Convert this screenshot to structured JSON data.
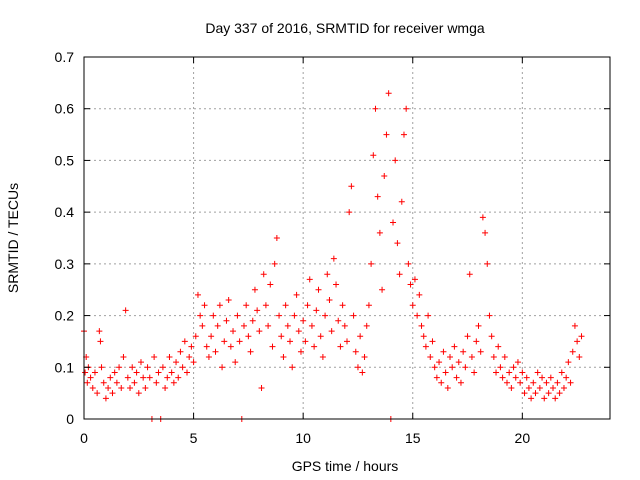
{
  "chart_data": {
    "type": "scatter",
    "title": "Day 337 of 2016, SRMTID for receiver wmga",
    "xlabel": "GPS time / hours",
    "ylabel": "SRMTID / TECUs",
    "xlim": [
      0,
      24
    ],
    "ylim": [
      0,
      0.7
    ],
    "xticks": [
      0,
      5,
      10,
      15,
      20
    ],
    "yticks": [
      0,
      0.1,
      0.2,
      0.3,
      0.4,
      0.5,
      0.6,
      0.7
    ],
    "grid": true,
    "legend": "none",
    "marker": "+",
    "series": [
      {
        "name": "SRMTID",
        "color": "#ff0000",
        "points": [
          [
            0.0,
            0.17
          ],
          [
            0.05,
            0.09
          ],
          [
            0.1,
            0.12
          ],
          [
            0.15,
            0.07
          ],
          [
            0.2,
            0.1
          ],
          [
            0.3,
            0.08
          ],
          [
            0.4,
            0.06
          ],
          [
            0.5,
            0.09
          ],
          [
            0.6,
            0.05
          ],
          [
            0.7,
            0.17
          ],
          [
            0.75,
            0.15
          ],
          [
            0.8,
            0.1
          ],
          [
            0.9,
            0.07
          ],
          [
            1.0,
            0.04
          ],
          [
            1.1,
            0.06
          ],
          [
            1.2,
            0.08
          ],
          [
            1.3,
            0.05
          ],
          [
            1.4,
            0.09
          ],
          [
            1.5,
            0.07
          ],
          [
            1.6,
            0.1
          ],
          [
            1.7,
            0.06
          ],
          [
            1.8,
            0.12
          ],
          [
            1.9,
            0.21
          ],
          [
            2.0,
            0.08
          ],
          [
            2.1,
            0.06
          ],
          [
            2.2,
            0.1
          ],
          [
            2.3,
            0.07
          ],
          [
            2.4,
            0.09
          ],
          [
            2.5,
            0.05
          ],
          [
            2.6,
            0.11
          ],
          [
            2.7,
            0.08
          ],
          [
            2.8,
            0.06
          ],
          [
            2.9,
            0.1
          ],
          [
            3.0,
            0.08
          ],
          [
            3.1,
            0.0
          ],
          [
            3.2,
            0.12
          ],
          [
            3.3,
            0.07
          ],
          [
            3.4,
            0.09
          ],
          [
            3.5,
            0.0
          ],
          [
            3.6,
            0.1
          ],
          [
            3.7,
            0.06
          ],
          [
            3.8,
            0.08
          ],
          [
            3.9,
            0.12
          ],
          [
            4.0,
            0.09
          ],
          [
            4.1,
            0.07
          ],
          [
            4.2,
            0.11
          ],
          [
            4.3,
            0.08
          ],
          [
            4.4,
            0.13
          ],
          [
            4.5,
            0.1
          ],
          [
            4.6,
            0.15
          ],
          [
            4.7,
            0.09
          ],
          [
            4.8,
            0.12
          ],
          [
            4.9,
            0.14
          ],
          [
            5.0,
            0.11
          ],
          [
            5.1,
            0.16
          ],
          [
            5.2,
            0.24
          ],
          [
            5.3,
            0.2
          ],
          [
            5.4,
            0.18
          ],
          [
            5.5,
            0.22
          ],
          [
            5.6,
            0.14
          ],
          [
            5.7,
            0.12
          ],
          [
            5.8,
            0.16
          ],
          [
            5.9,
            0.2
          ],
          [
            6.0,
            0.13
          ],
          [
            6.1,
            0.18
          ],
          [
            6.2,
            0.22
          ],
          [
            6.3,
            0.1
          ],
          [
            6.4,
            0.15
          ],
          [
            6.5,
            0.19
          ],
          [
            6.6,
            0.23
          ],
          [
            6.7,
            0.14
          ],
          [
            6.8,
            0.17
          ],
          [
            6.9,
            0.11
          ],
          [
            7.0,
            0.2
          ],
          [
            7.1,
            0.15
          ],
          [
            7.2,
            0.0
          ],
          [
            7.3,
            0.18
          ],
          [
            7.4,
            0.22
          ],
          [
            7.5,
            0.16
          ],
          [
            7.6,
            0.13
          ],
          [
            7.7,
            0.19
          ],
          [
            7.8,
            0.25
          ],
          [
            7.9,
            0.21
          ],
          [
            8.0,
            0.17
          ],
          [
            8.1,
            0.06
          ],
          [
            8.2,
            0.28
          ],
          [
            8.3,
            0.22
          ],
          [
            8.4,
            0.18
          ],
          [
            8.5,
            0.26
          ],
          [
            8.6,
            0.14
          ],
          [
            8.7,
            0.3
          ],
          [
            8.8,
            0.35
          ],
          [
            8.9,
            0.2
          ],
          [
            9.0,
            0.16
          ],
          [
            9.1,
            0.12
          ],
          [
            9.2,
            0.22
          ],
          [
            9.3,
            0.18
          ],
          [
            9.4,
            0.15
          ],
          [
            9.5,
            0.1
          ],
          [
            9.6,
            0.2
          ],
          [
            9.7,
            0.24
          ],
          [
            9.8,
            0.17
          ],
          [
            9.9,
            0.13
          ],
          [
            10.0,
            0.19
          ],
          [
            10.1,
            0.15
          ],
          [
            10.2,
            0.22
          ],
          [
            10.3,
            0.27
          ],
          [
            10.4,
            0.18
          ],
          [
            10.5,
            0.14
          ],
          [
            10.6,
            0.21
          ],
          [
            10.7,
            0.25
          ],
          [
            10.8,
            0.16
          ],
          [
            10.9,
            0.12
          ],
          [
            11.0,
            0.2
          ],
          [
            11.1,
            0.28
          ],
          [
            11.2,
            0.23
          ],
          [
            11.3,
            0.17
          ],
          [
            11.4,
            0.31
          ],
          [
            11.5,
            0.26
          ],
          [
            11.6,
            0.19
          ],
          [
            11.7,
            0.14
          ],
          [
            11.8,
            0.22
          ],
          [
            11.9,
            0.18
          ],
          [
            12.0,
            0.15
          ],
          [
            12.1,
            0.4
          ],
          [
            12.2,
            0.45
          ],
          [
            12.3,
            0.2
          ],
          [
            12.4,
            0.13
          ],
          [
            12.5,
            0.1
          ],
          [
            12.6,
            0.16
          ],
          [
            12.7,
            0.09
          ],
          [
            12.8,
            0.12
          ],
          [
            12.9,
            0.18
          ],
          [
            13.0,
            0.22
          ],
          [
            13.1,
            0.3
          ],
          [
            13.2,
            0.51
          ],
          [
            13.3,
            0.6
          ],
          [
            13.4,
            0.43
          ],
          [
            13.5,
            0.36
          ],
          [
            13.6,
            0.25
          ],
          [
            13.7,
            0.47
          ],
          [
            13.8,
            0.55
          ],
          [
            13.9,
            0.63
          ],
          [
            14.0,
            0.0
          ],
          [
            14.1,
            0.38
          ],
          [
            14.2,
            0.5
          ],
          [
            14.3,
            0.34
          ],
          [
            14.4,
            0.28
          ],
          [
            14.5,
            0.42
          ],
          [
            14.6,
            0.55
          ],
          [
            14.7,
            0.6
          ],
          [
            14.8,
            0.3
          ],
          [
            14.9,
            0.26
          ],
          [
            15.0,
            0.22
          ],
          [
            15.1,
            0.27
          ],
          [
            15.2,
            0.2
          ],
          [
            15.3,
            0.24
          ],
          [
            15.4,
            0.18
          ],
          [
            15.5,
            0.16
          ],
          [
            15.6,
            0.14
          ],
          [
            15.7,
            0.2
          ],
          [
            15.8,
            0.12
          ],
          [
            15.9,
            0.15
          ],
          [
            16.0,
            0.1
          ],
          [
            16.1,
            0.08
          ],
          [
            16.2,
            0.11
          ],
          [
            16.3,
            0.07
          ],
          [
            16.4,
            0.13
          ],
          [
            16.5,
            0.09
          ],
          [
            16.6,
            0.06
          ],
          [
            16.7,
            0.12
          ],
          [
            16.8,
            0.1
          ],
          [
            16.9,
            0.14
          ],
          [
            17.0,
            0.08
          ],
          [
            17.1,
            0.11
          ],
          [
            17.2,
            0.07
          ],
          [
            17.3,
            0.13
          ],
          [
            17.4,
            0.1
          ],
          [
            17.5,
            0.16
          ],
          [
            17.6,
            0.28
          ],
          [
            17.7,
            0.12
          ],
          [
            17.8,
            0.09
          ],
          [
            17.9,
            0.15
          ],
          [
            18.0,
            0.18
          ],
          [
            18.1,
            0.13
          ],
          [
            18.2,
            0.39
          ],
          [
            18.3,
            0.36
          ],
          [
            18.4,
            0.3
          ],
          [
            18.5,
            0.2
          ],
          [
            18.6,
            0.16
          ],
          [
            18.7,
            0.12
          ],
          [
            18.8,
            0.09
          ],
          [
            18.9,
            0.14
          ],
          [
            19.0,
            0.1
          ],
          [
            19.1,
            0.08
          ],
          [
            19.2,
            0.12
          ],
          [
            19.3,
            0.07
          ],
          [
            19.4,
            0.09
          ],
          [
            19.5,
            0.06
          ],
          [
            19.6,
            0.1
          ],
          [
            19.7,
            0.08
          ],
          [
            19.8,
            0.11
          ],
          [
            19.9,
            0.07
          ],
          [
            20.0,
            0.09
          ],
          [
            20.1,
            0.05
          ],
          [
            20.2,
            0.08
          ],
          [
            20.3,
            0.06
          ],
          [
            20.4,
            0.04
          ],
          [
            20.5,
            0.07
          ],
          [
            20.6,
            0.05
          ],
          [
            20.7,
            0.09
          ],
          [
            20.8,
            0.06
          ],
          [
            20.9,
            0.08
          ],
          [
            21.0,
            0.04
          ],
          [
            21.1,
            0.07
          ],
          [
            21.2,
            0.05
          ],
          [
            21.3,
            0.08
          ],
          [
            21.4,
            0.06
          ],
          [
            21.5,
            0.04
          ],
          [
            21.6,
            0.07
          ],
          [
            21.7,
            0.05
          ],
          [
            21.8,
            0.09
          ],
          [
            21.9,
            0.06
          ],
          [
            22.0,
            0.08
          ],
          [
            22.1,
            0.11
          ],
          [
            22.2,
            0.07
          ],
          [
            22.3,
            0.13
          ],
          [
            22.4,
            0.18
          ],
          [
            22.5,
            0.15
          ],
          [
            22.6,
            0.12
          ],
          [
            22.7,
            0.16
          ]
        ]
      }
    ]
  }
}
